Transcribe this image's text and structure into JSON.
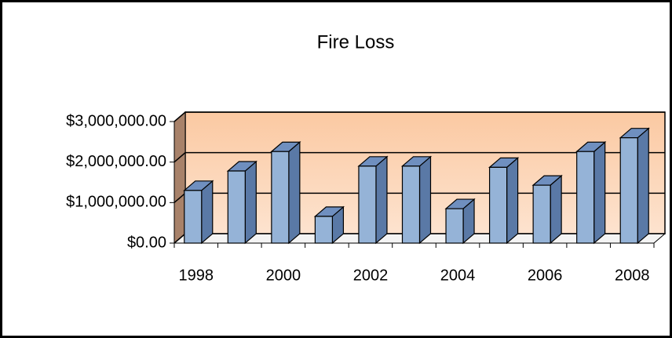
{
  "chart_data": {
    "type": "bar3d",
    "title": "Fire Loss",
    "categories": [
      "1998",
      null,
      "2000",
      null,
      "2002",
      null,
      "2004",
      null,
      "2006",
      null,
      "2008"
    ],
    "values": [
      1300000,
      1780000,
      2260000,
      660000,
      1900000,
      1900000,
      850000,
      1870000,
      1430000,
      2260000,
      2600000
    ],
    "color": "#95b3d7",
    "ylim": [
      0,
      3000000
    ],
    "yticks": [
      {
        "value": 0,
        "label": "$0.00"
      },
      {
        "value": 1000000,
        "label": "$1,000,000.00"
      },
      {
        "value": 2000000,
        "label": "$2,000,000.00"
      },
      {
        "value": 3000000,
        "label": "$3,000,000.00"
      }
    ],
    "grid": true
  }
}
